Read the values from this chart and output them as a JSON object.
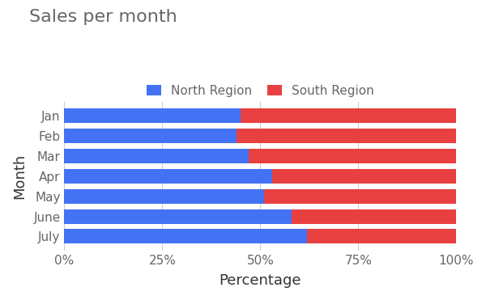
{
  "title": "Sales per month",
  "xlabel": "Percentage",
  "ylabel": "Month",
  "categories": [
    "Jan",
    "Feb",
    "Mar",
    "Apr",
    "May",
    "June",
    "July"
  ],
  "north_region": [
    45,
    44,
    47,
    53,
    51,
    58,
    62
  ],
  "south_region": [
    55,
    56,
    53,
    47,
    49,
    42,
    38
  ],
  "color_north": "#4472F5",
  "color_south": "#E84040",
  "background_color": "#ffffff",
  "title_fontsize": 16,
  "axis_label_fontsize": 13,
  "tick_fontsize": 11,
  "legend_fontsize": 11,
  "bar_height": 0.72,
  "xlim": [
    0,
    100
  ],
  "xticks": [
    0,
    25,
    50,
    75,
    100
  ],
  "xtick_labels": [
    "0%",
    "25%",
    "50%",
    "75%",
    "100%"
  ]
}
